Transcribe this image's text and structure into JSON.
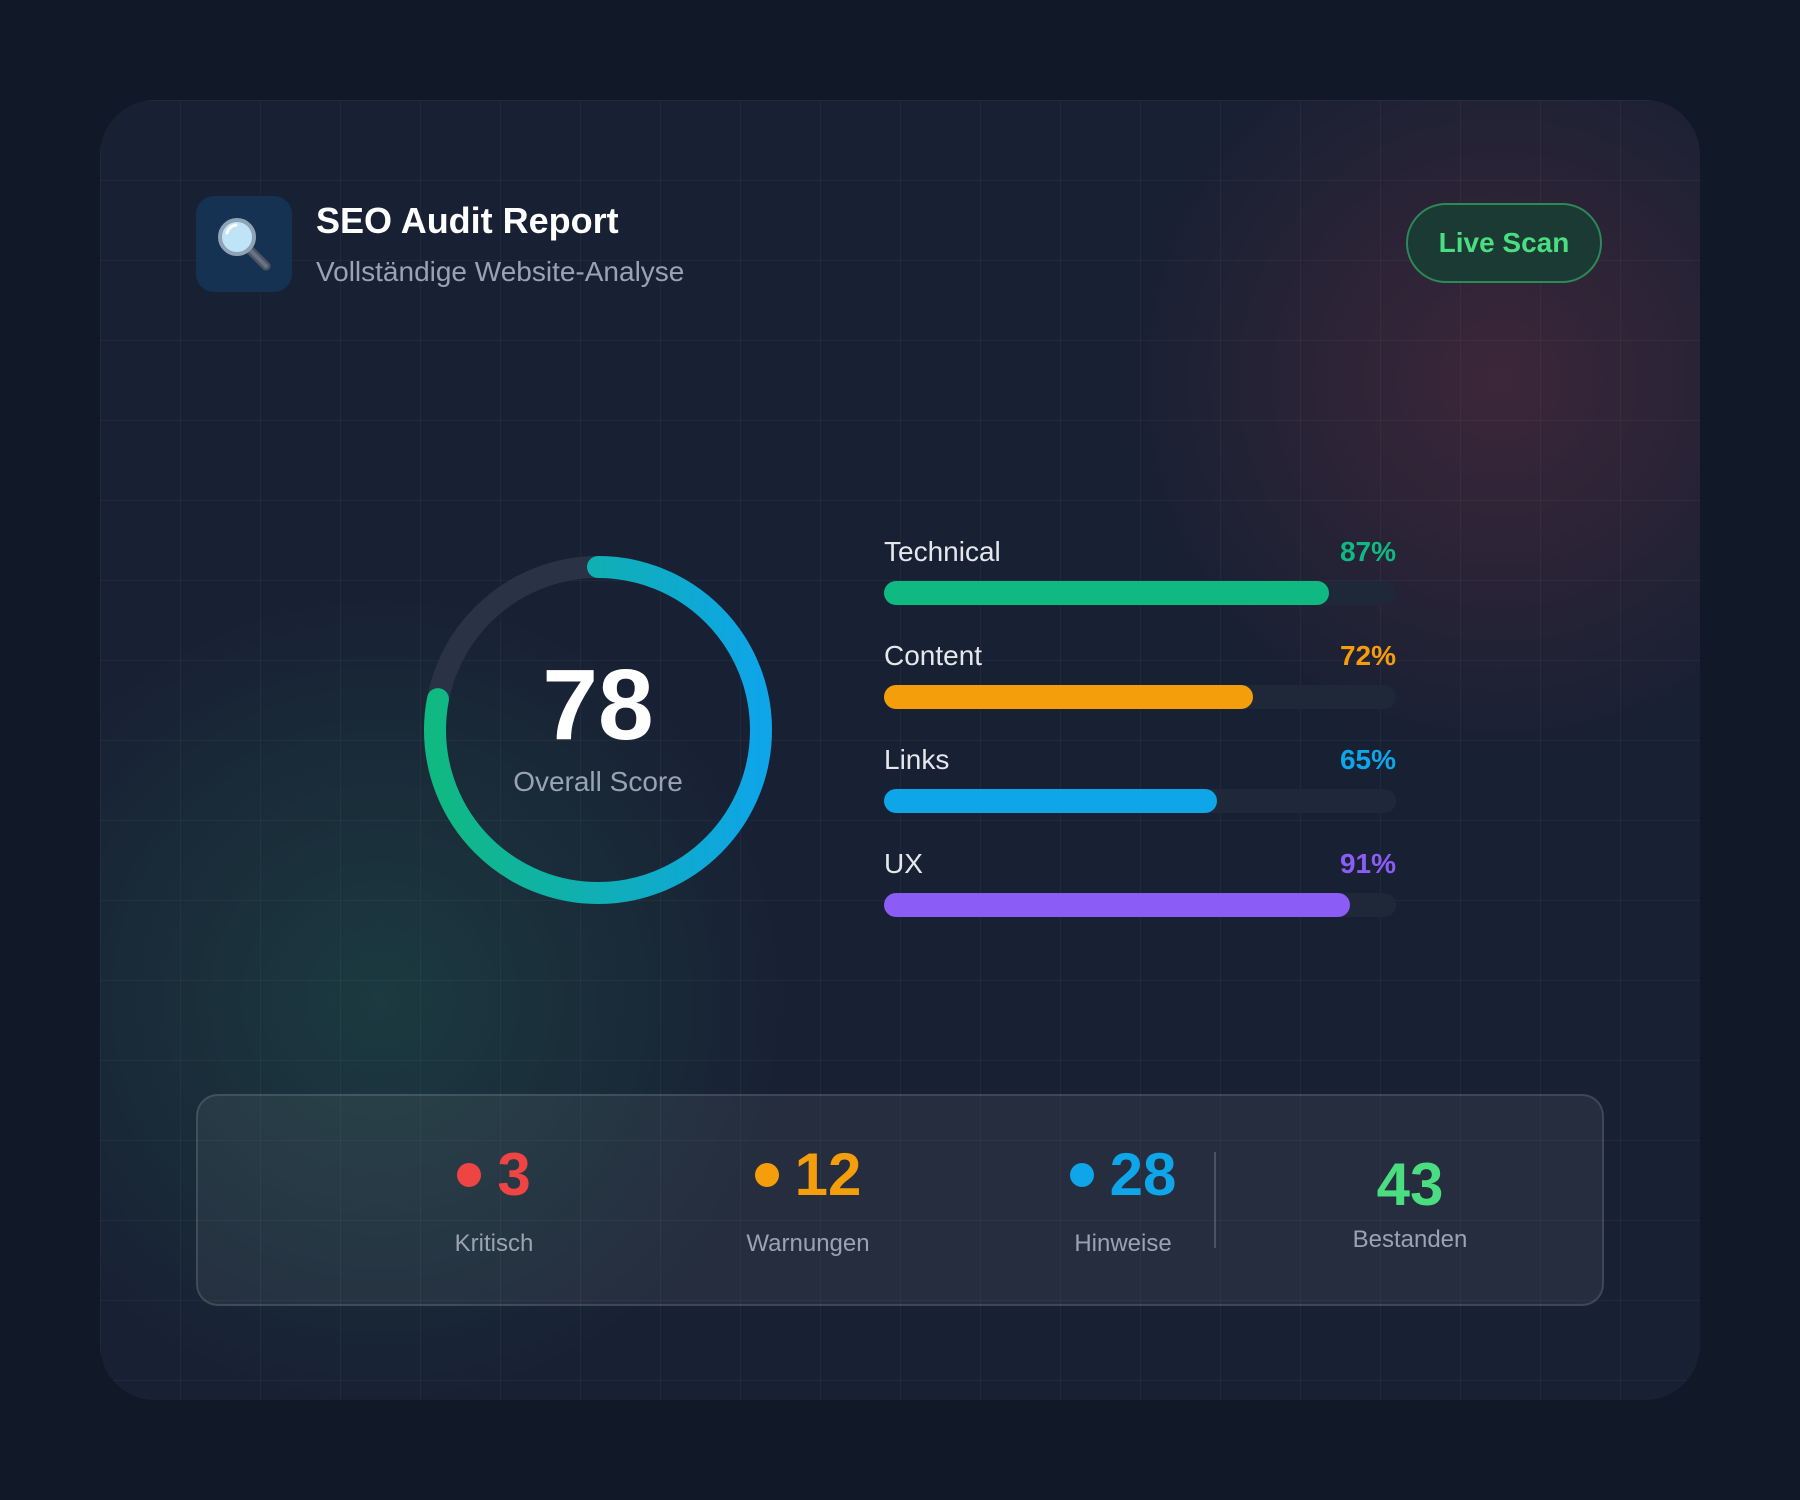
{
  "header": {
    "title": "SEO Audit Report",
    "subtitle": "Vollständige Website-Analyse",
    "icon": "magnifying-glass-icon",
    "action_label": "Live Scan"
  },
  "score": {
    "value": "78",
    "label": "Overall Score",
    "fraction": 0.78
  },
  "categories": [
    {
      "label": "Technical",
      "percent_text": "87%",
      "value": 87,
      "color": "#10b981"
    },
    {
      "label": "Content",
      "percent_text": "72%",
      "value": 72,
      "color": "#f59e0b"
    },
    {
      "label": "Links",
      "percent_text": "65%",
      "value": 65,
      "color": "#0ea5e9"
    },
    {
      "label": "UX",
      "percent_text": "91%",
      "value": 91,
      "color": "#8b5cf6"
    }
  ],
  "summary": [
    {
      "count": "3",
      "label": "Kritisch",
      "color": "#ef4444"
    },
    {
      "count": "12",
      "label": "Warnungen",
      "color": "#f59e0b"
    },
    {
      "count": "28",
      "label": "Hinweise",
      "color": "#0ea5e9"
    }
  ],
  "passed": {
    "count": "43",
    "label": "Bestanden",
    "color": "#4ade80"
  }
}
